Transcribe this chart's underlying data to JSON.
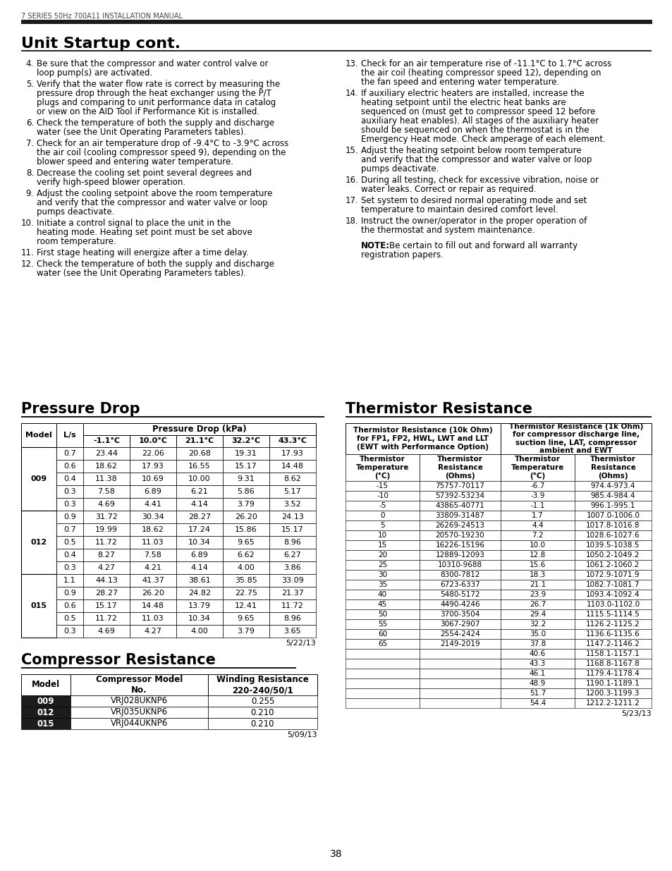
{
  "header_text": "7 SERIES 50Hz 700A11 INSTALLATION MANUAL",
  "title": "Unit Startup cont.",
  "page_number": "38",
  "pressure_drop_title": "Pressure Drop",
  "pressure_drop_subheader": "Pressure Drop (kPa)",
  "pressure_drop_date": "5/22/13",
  "pressure_drop_data": [
    [
      "009",
      "0.7",
      "23.44",
      "22.06",
      "20.68",
      "19.31",
      "17.93"
    ],
    [
      "009",
      "0.6",
      "18.62",
      "17.93",
      "16.55",
      "15.17",
      "14.48"
    ],
    [
      "009",
      "0.4",
      "11.38",
      "10.69",
      "10.00",
      "9.31",
      "8.62"
    ],
    [
      "009",
      "0.3",
      "7.58",
      "6.89",
      "6.21",
      "5.86",
      "5.17"
    ],
    [
      "009",
      "0.3",
      "4.69",
      "4.41",
      "4.14",
      "3.79",
      "3.52"
    ],
    [
      "012",
      "0.9",
      "31.72",
      "30.34",
      "28.27",
      "26.20",
      "24.13"
    ],
    [
      "012",
      "0.7",
      "19.99",
      "18.62",
      "17.24",
      "15.86",
      "15.17"
    ],
    [
      "012",
      "0.5",
      "11.72",
      "11.03",
      "10.34",
      "9.65",
      "8.96"
    ],
    [
      "012",
      "0.4",
      "8.27",
      "7.58",
      "6.89",
      "6.62",
      "6.27"
    ],
    [
      "012",
      "0.3",
      "4.27",
      "4.21",
      "4.14",
      "4.00",
      "3.86"
    ],
    [
      "015",
      "1.1",
      "44.13",
      "41.37",
      "38.61",
      "35.85",
      "33.09"
    ],
    [
      "015",
      "0.9",
      "28.27",
      "26.20",
      "24.82",
      "22.75",
      "21.37"
    ],
    [
      "015",
      "0.6",
      "15.17",
      "14.48",
      "13.79",
      "12.41",
      "11.72"
    ],
    [
      "015",
      "0.5",
      "11.72",
      "11.03",
      "10.34",
      "9.65",
      "8.96"
    ],
    [
      "015",
      "0.3",
      "4.69",
      "4.27",
      "4.00",
      "3.79",
      "3.65"
    ]
  ],
  "compressor_title": "Compressor Resistance",
  "compressor_date": "5/09/13",
  "compressor_data": [
    [
      "009",
      "VRJ028UKNP6",
      "0.255"
    ],
    [
      "012",
      "VRJ035UKNP6",
      "0.210"
    ],
    [
      "015",
      "VRJ044UKNP6",
      "0.210"
    ]
  ],
  "thermistor_title": "Thermistor Resistance",
  "thermistor_header1": "Thermistor Resistance (10k Ohm)\nfor FP1, FP2, HWL, LWT and LLT\n(EWT with Performance Option)",
  "thermistor_header2": "Thermistor Resistance (1k Ohm)\nfor compressor discharge line,\nsuction line, LAT, compressor\nambient and EWT",
  "thermistor_date": "5/23/13",
  "thermistor_data": [
    [
      "-15",
      "75757-70117",
      "-6.7",
      "974.4-973.4"
    ],
    [
      "-10",
      "57392-53234",
      "-3.9",
      "985.4-984.4"
    ],
    [
      "-5",
      "43865-40771",
      "-1.1",
      "996.1-995.1"
    ],
    [
      "0",
      "33809-31487",
      "1.7",
      "1007.0-1006.0"
    ],
    [
      "5",
      "26269-24513",
      "4.4",
      "1017.8-1016.8"
    ],
    [
      "10",
      "20570-19230",
      "7.2",
      "1028.6-1027.6"
    ],
    [
      "15",
      "16226-15196",
      "10.0",
      "1039.5-1038.5"
    ],
    [
      "20",
      "12889-12093",
      "12.8",
      "1050.2-1049.2"
    ],
    [
      "25",
      "10310-9688",
      "15.6",
      "1061.2-1060.2"
    ],
    [
      "30",
      "8300-7812",
      "18.3",
      "1072.9-1071.9"
    ],
    [
      "35",
      "6723-6337",
      "21.1",
      "1082.7-1081.7"
    ],
    [
      "40",
      "5480-5172",
      "23.9",
      "1093.4-1092.4"
    ],
    [
      "45",
      "4490-4246",
      "26.7",
      "1103.0-1102.0"
    ],
    [
      "50",
      "3700-3504",
      "29.4",
      "1115.5-1114.5"
    ],
    [
      "55",
      "3067-2907",
      "32.2",
      "1126.2-1125.2"
    ],
    [
      "60",
      "2554-2424",
      "35.0",
      "1136.6-1135.6"
    ],
    [
      "65",
      "2149-2019",
      "37.8",
      "1147.2-1146.2"
    ],
    [
      "",
      "",
      "40.6",
      "1158.1-1157.1"
    ],
    [
      "",
      "",
      "43.3",
      "1168.8-1167.8"
    ],
    [
      "",
      "",
      "46.1",
      "1179.4-1178.4"
    ],
    [
      "",
      "",
      "48.9",
      "1190.1-1189.1"
    ],
    [
      "",
      "",
      "51.7",
      "1200.3-1199.3"
    ],
    [
      "",
      "",
      "54.4",
      "1212.2-1211.2"
    ]
  ]
}
